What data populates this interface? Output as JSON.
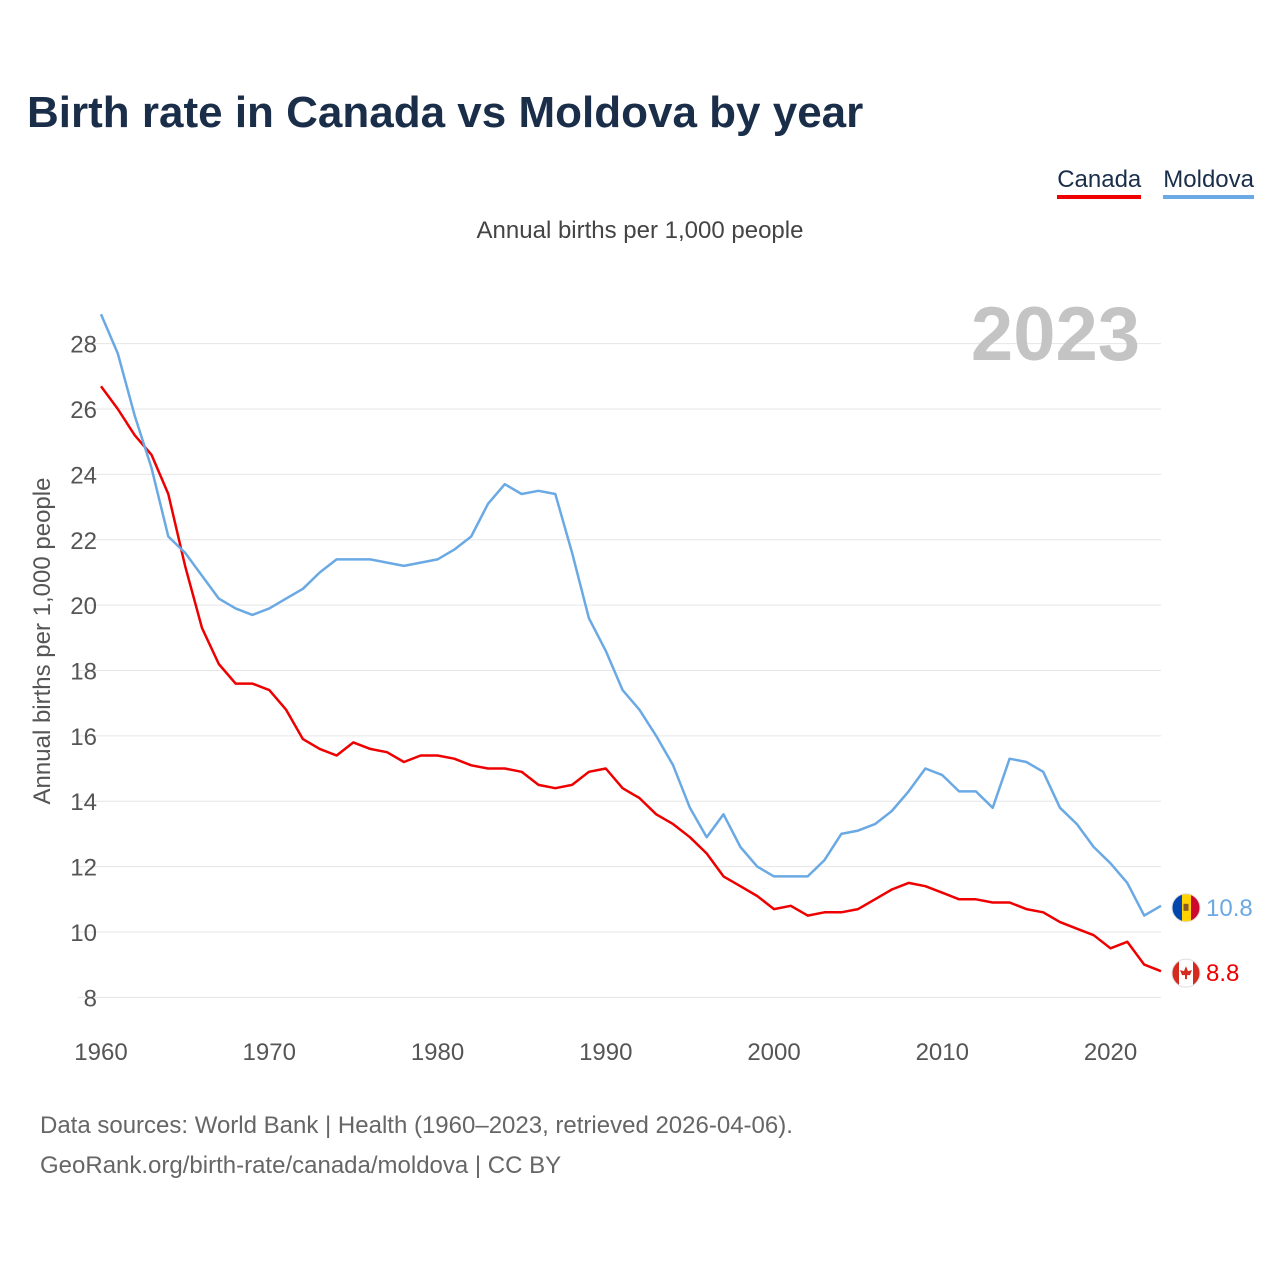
{
  "title": "Birth rate in Canada vs Moldova by year",
  "legend": [
    {
      "label": "Canada",
      "color": "#ee0000"
    },
    {
      "label": "Moldova",
      "color": "#6aa9e4"
    }
  ],
  "subtitle": "Annual births per 1,000 people",
  "footer": {
    "line1": "Data sources: World Bank | Health (1960–2023, retrieved 2026-04-06).",
    "line2": "GeoRank.org/birth-rate/canada/moldova | CC BY"
  },
  "chart_data": {
    "type": "line",
    "title": "Birth rate in Canada vs Moldova by year",
    "ylabel": "Annual births per 1,000 people",
    "xlabel": "",
    "year_label": "2023",
    "xlim": [
      1960,
      2023
    ],
    "ylim": [
      7,
      29
    ],
    "y_ticks": [
      8,
      10,
      12,
      14,
      16,
      18,
      20,
      22,
      24,
      26,
      28
    ],
    "x_ticks": [
      1960,
      1970,
      1980,
      1990,
      2000,
      2010,
      2020
    ],
    "grid": true,
    "x": [
      1960,
      1961,
      1962,
      1963,
      1964,
      1965,
      1966,
      1967,
      1968,
      1969,
      1970,
      1971,
      1972,
      1973,
      1974,
      1975,
      1976,
      1977,
      1978,
      1979,
      1980,
      1981,
      1982,
      1983,
      1984,
      1985,
      1986,
      1987,
      1988,
      1989,
      1990,
      1991,
      1992,
      1993,
      1994,
      1995,
      1996,
      1997,
      1998,
      1999,
      2000,
      2001,
      2002,
      2003,
      2004,
      2005,
      2006,
      2007,
      2008,
      2009,
      2010,
      2011,
      2012,
      2013,
      2014,
      2015,
      2016,
      2017,
      2018,
      2019,
      2020,
      2021,
      2022,
      2023
    ],
    "series": [
      {
        "name": "Canada",
        "color": "#ee0000",
        "end_label": "8.8",
        "values": [
          26.7,
          26.0,
          25.2,
          24.6,
          23.4,
          21.2,
          19.3,
          18.2,
          17.6,
          17.6,
          17.4,
          16.8,
          15.9,
          15.6,
          15.4,
          15.8,
          15.6,
          15.5,
          15.2,
          15.4,
          15.4,
          15.3,
          15.1,
          15.0,
          15.0,
          14.9,
          14.5,
          14.4,
          14.5,
          14.9,
          15.0,
          14.4,
          14.1,
          13.6,
          13.3,
          12.9,
          12.4,
          11.7,
          11.4,
          11.1,
          10.7,
          10.8,
          10.5,
          10.6,
          10.6,
          10.7,
          11.0,
          11.3,
          11.5,
          11.4,
          11.2,
          11.0,
          11.0,
          10.9,
          10.9,
          10.7,
          10.6,
          10.3,
          10.1,
          9.9,
          9.5,
          9.7,
          9.0,
          8.8
        ]
      },
      {
        "name": "Moldova",
        "color": "#6aa9e4",
        "end_label": "10.8",
        "values": [
          28.9,
          27.7,
          25.8,
          24.2,
          22.1,
          21.6,
          20.9,
          20.2,
          19.9,
          19.7,
          19.9,
          20.2,
          20.5,
          21.0,
          21.4,
          21.4,
          21.4,
          21.3,
          21.2,
          21.3,
          21.4,
          21.7,
          22.1,
          23.1,
          23.7,
          23.4,
          23.5,
          23.4,
          21.6,
          19.6,
          18.6,
          17.4,
          16.8,
          16.0,
          15.1,
          13.8,
          12.9,
          13.6,
          12.6,
          12.0,
          11.7,
          11.7,
          11.7,
          12.2,
          13.0,
          13.1,
          13.3,
          13.7,
          14.3,
          15.0,
          14.8,
          14.3,
          14.3,
          13.8,
          15.3,
          15.2,
          14.9,
          13.8,
          13.3,
          12.6,
          12.1,
          11.5,
          10.5,
          10.8
        ]
      }
    ]
  }
}
